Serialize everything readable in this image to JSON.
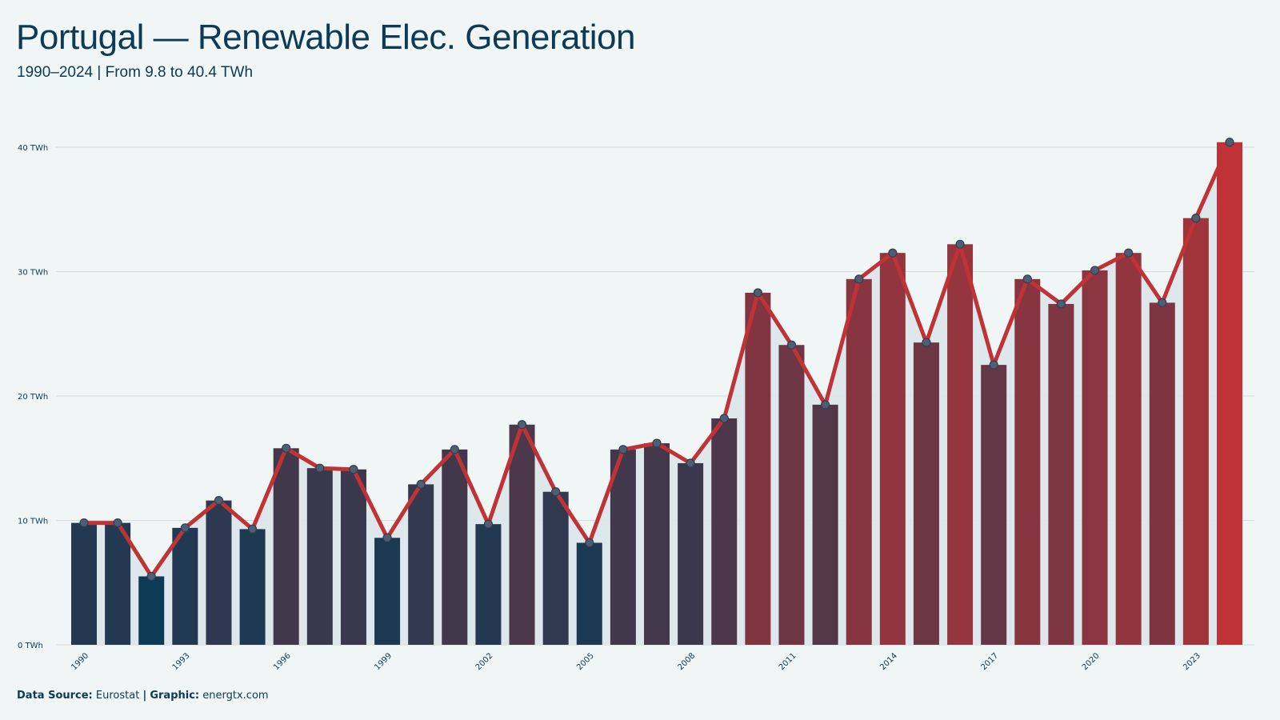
{
  "title": "Portugal — Renewable Elec. Generation",
  "subtitle": "1990–2024 | From 9.8 to 40.4 TWh",
  "footer": {
    "source_label": "Data Source:",
    "source_value": "Eurostat",
    "separator": "|",
    "graphic_label": "Graphic:",
    "graphic_value": "energtx.com"
  },
  "colors": {
    "background": "#f0f5f5",
    "text": "#0d3a55",
    "line": "#bf3336",
    "low_bar": "#0d3a55",
    "high_bar": "#bf3336",
    "area_fill": "#dce5ea",
    "grid": "#d5dcdf"
  },
  "chart_data": {
    "type": "bar",
    "x": [
      1990,
      1991,
      1992,
      1993,
      1994,
      1995,
      1996,
      1997,
      1998,
      1999,
      2000,
      2001,
      2002,
      2003,
      2004,
      2005,
      2006,
      2007,
      2008,
      2009,
      2010,
      2011,
      2012,
      2013,
      2014,
      2015,
      2016,
      2017,
      2018,
      2019,
      2020,
      2021,
      2022,
      2023,
      2024
    ],
    "values": [
      9.8,
      9.8,
      5.5,
      9.4,
      11.6,
      9.3,
      15.8,
      14.2,
      14.1,
      8.6,
      12.9,
      15.7,
      9.7,
      17.7,
      12.3,
      8.2,
      15.7,
      16.2,
      14.6,
      18.2,
      28.3,
      24.1,
      19.3,
      29.4,
      31.5,
      24.3,
      32.2,
      22.5,
      29.4,
      27.4,
      30.1,
      31.5,
      27.5,
      34.3,
      40.4
    ],
    "overlay": "line with point markers through the same values",
    "x_tick_labels": [
      "1990",
      "1993",
      "1996",
      "1999",
      "2002",
      "2005",
      "2008",
      "2011",
      "2014",
      "2017",
      "2020",
      "2023"
    ],
    "y_tick_labels": [
      "0 TWh",
      "10 TWh",
      "20 TWh",
      "30 TWh",
      "40 TWh"
    ],
    "y_ticks": [
      0,
      10,
      20,
      30,
      40
    ],
    "ylim": [
      0,
      40.4
    ],
    "unit": "TWh",
    "grid": "horizontal",
    "legend": "none"
  }
}
